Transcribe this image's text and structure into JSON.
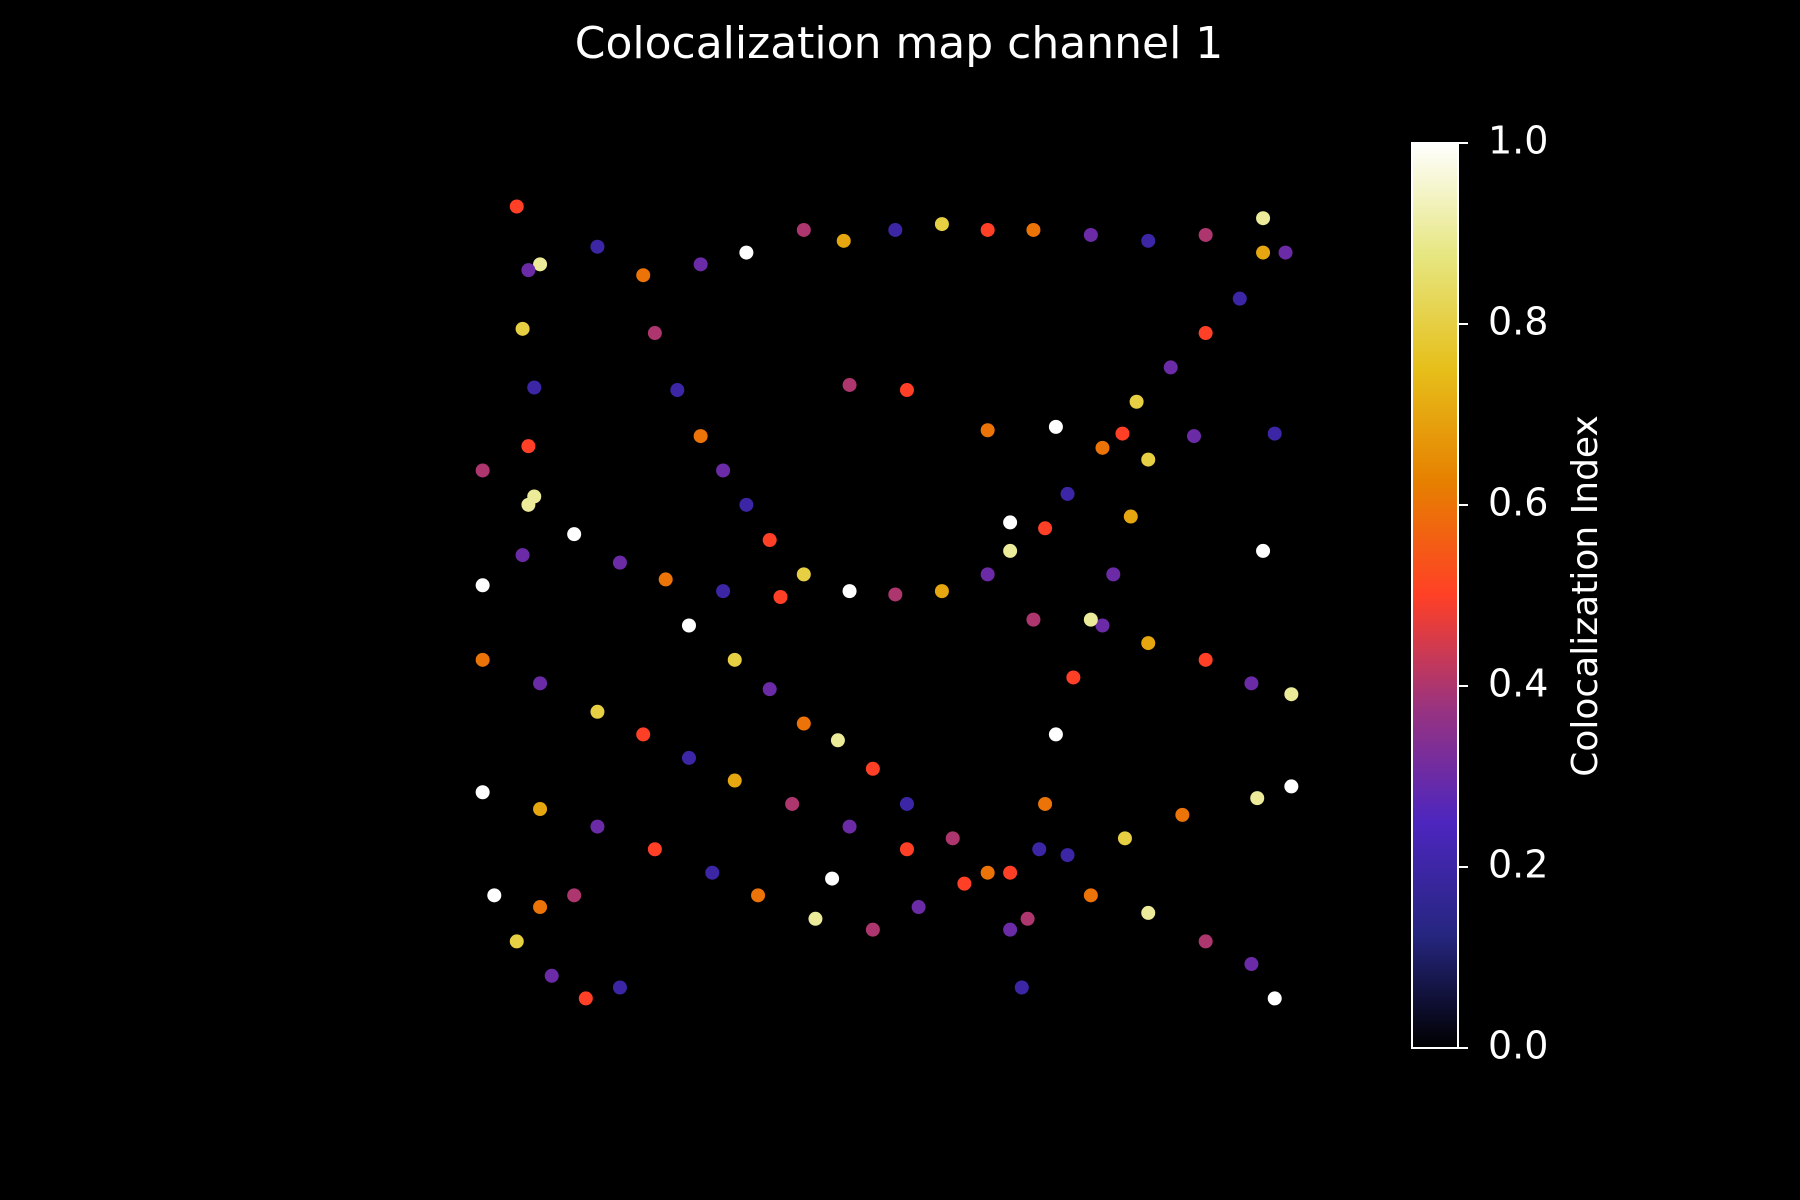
{
  "chart_data": {
    "type": "scatter",
    "title": "Colocalization map channel 1",
    "colormap": "CMRmap",
    "xlim": [
      0,
      100
    ],
    "ylim": [
      0,
      100
    ],
    "x": [
      5.5,
      8.3,
      15.2,
      20.7,
      27.6,
      33.1,
      40,
      44.8,
      51,
      56.6,
      62.1,
      67.6,
      74.5,
      81.4,
      88.3,
      95.2,
      97.9,
      6.9,
      6.2,
      7.6,
      6.9,
      7.6,
      6.2,
      22.1,
      24.8,
      27.6,
      30.3,
      33.1,
      35.9,
      40,
      45.5,
      51,
      56.6,
      62.1,
      64.8,
      69,
      71.7,
      75.9,
      80,
      84.1,
      88.3,
      92.4,
      95.2,
      62.1,
      70.3,
      78.3,
      86.9,
      96.6,
      1.4,
      6.9,
      12.4,
      17.9,
      23.4,
      30.3,
      37.2,
      67.6,
      75.9,
      81.4,
      88.3,
      93.8,
      98.6,
      26.2,
      31.7,
      35.9,
      40,
      44.1,
      48.3,
      52.4,
      57.9,
      62.1,
      64.8,
      66.2,
      81.4,
      79.3,
      77.2,
      74.5,
      72.4,
      70.3,
      69,
      68.3,
      66.9,
      1.4,
      8.3,
      15.2,
      20.7,
      26.2,
      31.7,
      38.6,
      45.5,
      52.4,
      64.8,
      71.7,
      78.6,
      85.5,
      94.5,
      98.6,
      1.4,
      8.3,
      15.2,
      22.1,
      29,
      34.5,
      41.4,
      48.3,
      53.8,
      59.3,
      74.5,
      81.4,
      88.3,
      93.8,
      96.6,
      2.8,
      5.5,
      9.7,
      13.8,
      17.9,
      8.3,
      12.4,
      1.4,
      95.2,
      45.5,
      52.4,
      64.8,
      43.4
    ],
    "values": [
      96.6,
      89.7,
      91.8,
      88.4,
      89.7,
      91.1,
      93.8,
      92.5,
      93.8,
      94.5,
      93.8,
      93.8,
      93.2,
      92.5,
      93.2,
      95.2,
      91.1,
      89,
      82,
      75,
      68,
      62,
      55,
      81.5,
      74.7,
      69.2,
      65.1,
      61,
      56.8,
      52.7,
      50.7,
      50.3,
      50.7,
      52.7,
      55.5,
      58.2,
      62.3,
      67.8,
      73.3,
      77.4,
      81.5,
      85.6,
      91.1,
      69.9,
      70.3,
      69.5,
      69.2,
      69.5,
      65.1,
      61,
      57.5,
      54.1,
      52.1,
      50.7,
      50,
      47.3,
      46.6,
      44.5,
      42.5,
      39.7,
      38.4,
      46.6,
      42.5,
      39,
      34.9,
      32.9,
      29.5,
      25.3,
      21.2,
      17.1,
      10.3,
      3.4,
      66.4,
      59.6,
      52.7,
      47.3,
      40.4,
      33.6,
      25.3,
      19.9,
      11.6,
      42.5,
      39.7,
      36.3,
      33.6,
      30.8,
      28.1,
      25.3,
      22.6,
      19.9,
      17.1,
      19.2,
      21.2,
      24,
      26,
      27.4,
      26.7,
      24.7,
      22.6,
      19.9,
      17.1,
      14.4,
      11.6,
      10.3,
      13,
      15.8,
      14.4,
      12.3,
      8.9,
      6.2,
      2.1,
      14.4,
      8.9,
      4.8,
      2.1,
      3.4,
      13,
      14.4,
      51.4,
      55.5,
      75.3,
      74.7,
      58.9,
      16.4
    ],
    "color_values": [
      0.5,
      0.9,
      0.2,
      0.6,
      0.3,
      1.0,
      0.4,
      0.7,
      0.2,
      0.8,
      0.5,
      0.6,
      0.3,
      0.2,
      0.4,
      0.9,
      0.3,
      0.3,
      0.8,
      0.2,
      0.5,
      0.9,
      0.3,
      0.4,
      0.2,
      0.6,
      0.3,
      0.2,
      0.5,
      0.8,
      1.0,
      0.4,
      0.7,
      0.3,
      0.9,
      0.5,
      0.2,
      0.6,
      0.8,
      0.3,
      0.5,
      0.2,
      0.7,
      0.6,
      1.0,
      0.5,
      0.3,
      0.2,
      0.4,
      0.9,
      1.0,
      0.3,
      0.6,
      0.2,
      0.5,
      0.4,
      0.3,
      0.7,
      0.5,
      0.3,
      0.9,
      1.0,
      0.8,
      0.3,
      0.6,
      0.9,
      0.5,
      0.2,
      0.4,
      0.6,
      0.3,
      0.2,
      0.8,
      0.7,
      0.3,
      0.9,
      0.5,
      1.0,
      0.6,
      0.2,
      0.4,
      0.6,
      0.3,
      0.8,
      0.5,
      0.2,
      0.7,
      0.4,
      0.3,
      0.5,
      0.5,
      0.2,
      0.8,
      0.6,
      0.9,
      1.0,
      1.0,
      0.7,
      0.3,
      0.5,
      0.2,
      0.6,
      0.9,
      0.4,
      0.3,
      0.5,
      0.6,
      0.9,
      0.4,
      0.3,
      1.0,
      1.0,
      0.8,
      0.3,
      0.5,
      0.2,
      0.6,
      0.4,
      1.0,
      1.0,
      0.4,
      0.5,
      1.0,
      1.0
    ],
    "colorbar": {
      "label": "Colocalization Index",
      "lim": [
        0,
        1
      ],
      "ticks": [
        {
          "value": 0,
          "label": "0.0"
        },
        {
          "value": 0.2,
          "label": "0.2"
        },
        {
          "value": 0.4,
          "label": "0.4"
        },
        {
          "value": 0.6,
          "label": "0.6"
        },
        {
          "value": 0.8,
          "label": "0.8"
        },
        {
          "value": 1,
          "label": "1.0"
        }
      ]
    }
  }
}
